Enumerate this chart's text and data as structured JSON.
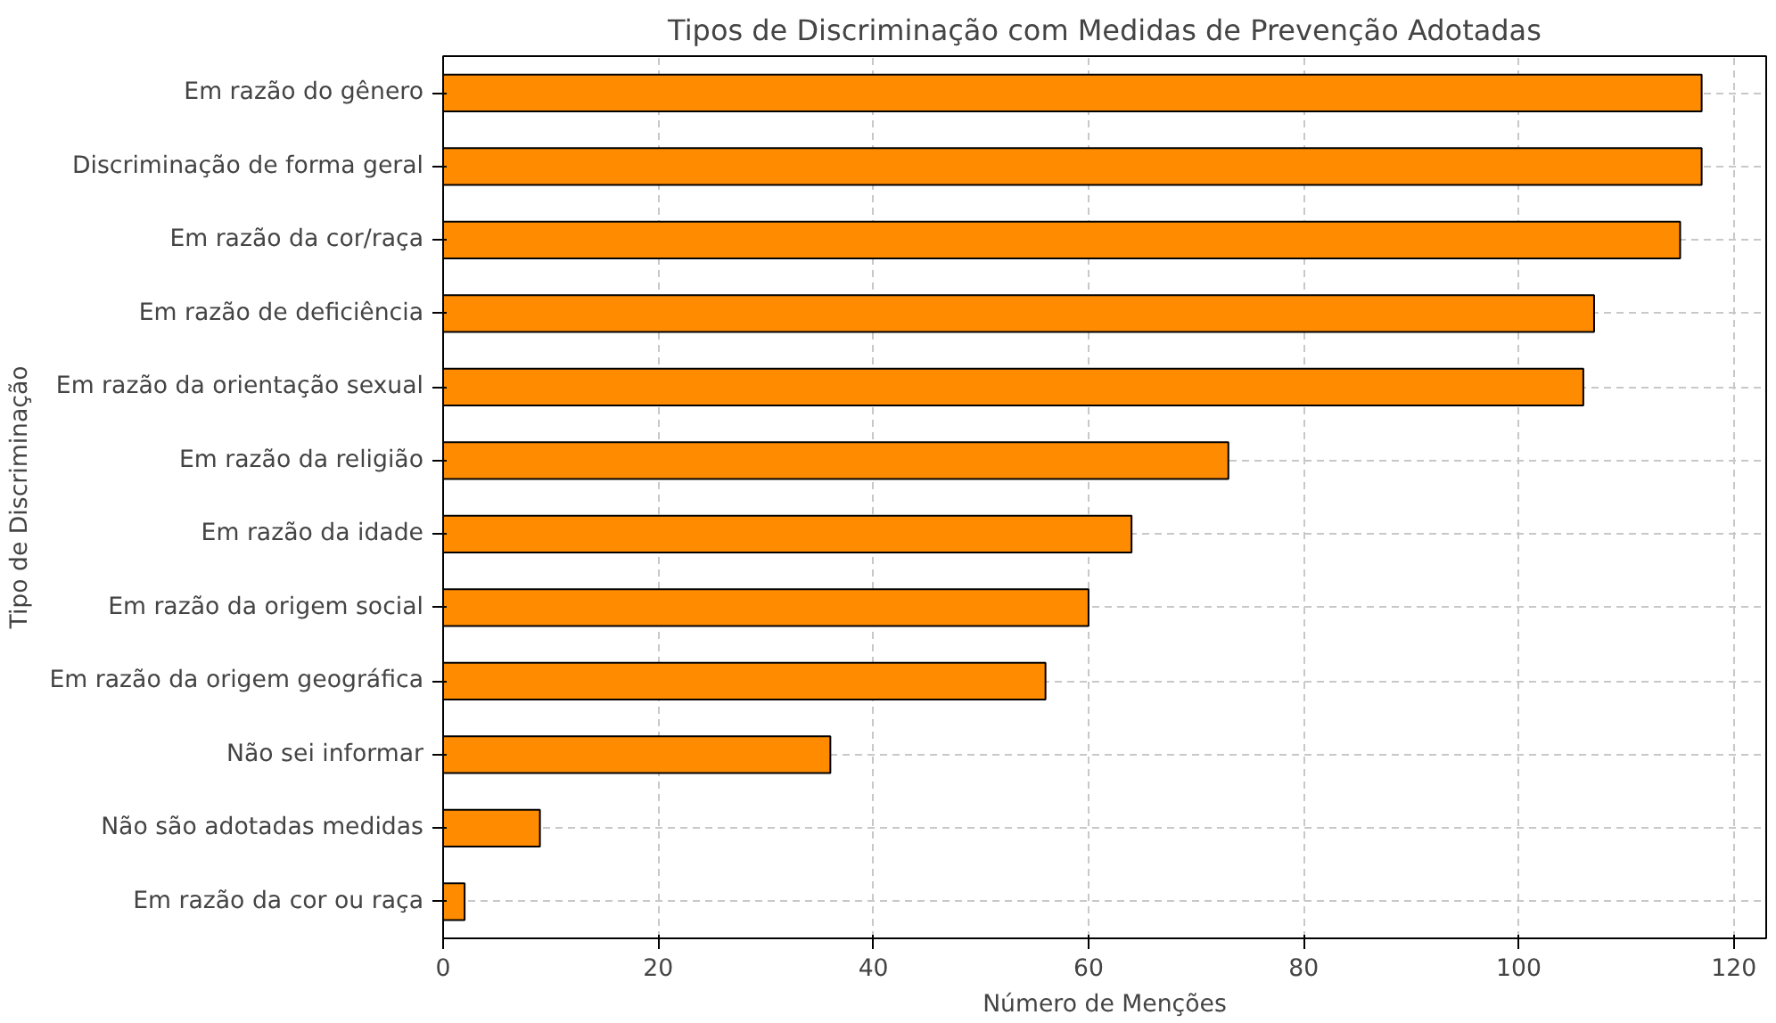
{
  "chart_data": {
    "type": "bar",
    "orientation": "horizontal",
    "title": "Tipos de Discriminação com Medidas de Prevenção Adotadas",
    "xlabel": "Número de Menções",
    "ylabel": "Tipo de Discriminação",
    "categories": [
      "Em razão do gênero",
      "Discriminação de forma geral",
      "Em razão da cor/raça",
      "Em razão de deficiência",
      "Em razão da orientação sexual",
      "Em razão da religião",
      "Em razão da idade",
      "Em razão da origem social",
      "Em razão da origem geográfica",
      "Não sei informar",
      "Não são adotadas medidas",
      "Em razão da cor ou raça"
    ],
    "values": [
      117,
      117,
      115,
      107,
      106,
      73,
      64,
      60,
      56,
      36,
      9,
      2
    ],
    "color": "#ff8c00",
    "xlim": [
      0,
      123
    ],
    "xticks": [
      0,
      20,
      40,
      60,
      80,
      100,
      120
    ],
    "grid": true
  }
}
